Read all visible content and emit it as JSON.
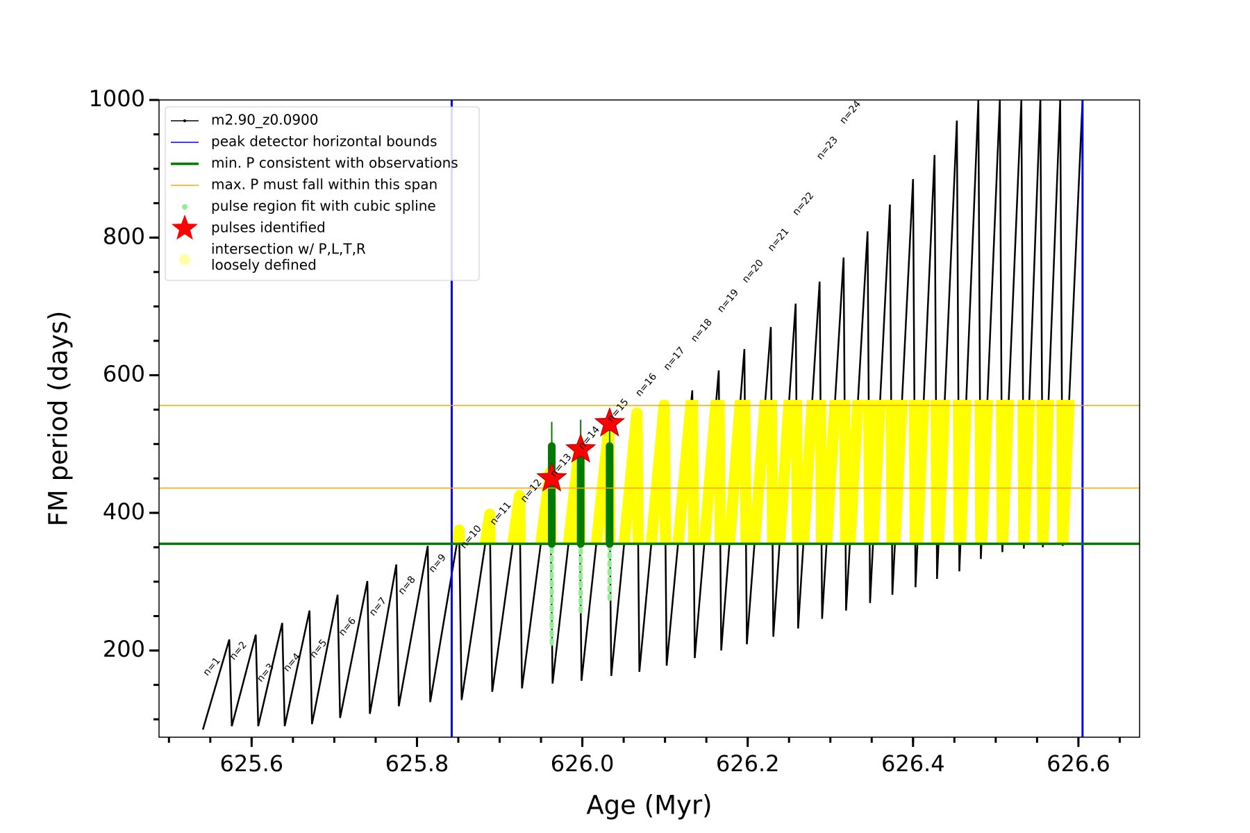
{
  "chart_data": {
    "type": "line",
    "xlabel": "Age (Myr)",
    "ylabel": "FM period (days)",
    "xlim": [
      625.488,
      626.674
    ],
    "ylim": [
      74,
      1000
    ],
    "xticks": [
      625.6,
      625.8,
      {
        "value": 626,
        "label": "626.0"
      },
      626.2,
      626.4,
      626.6
    ],
    "xminor_ticks": [
      625.5,
      625.55,
      625.6,
      625.65,
      625.7,
      625.75,
      625.8,
      625.85,
      625.9,
      625.95,
      626,
      626.05,
      626.1,
      626.15,
      626.2,
      626.25,
      626.3,
      626.35,
      626.4,
      626.45,
      626.5,
      626.55,
      626.6,
      626.65
    ],
    "yticks": [
      200,
      400,
      600,
      800,
      1000
    ],
    "yminor_ticks": [
      100,
      150,
      200,
      250,
      300,
      350,
      400,
      450,
      500,
      550,
      600,
      650,
      700,
      750,
      800,
      850,
      900,
      950,
      1000
    ],
    "series": [
      {
        "kind": "line",
        "name": "m2.90_z0.0900",
        "color": "#000000",
        "x": [
          625.541,
          625.573,
          625.576,
          625.605,
          625.608,
          625.637,
          625.64,
          625.67,
          625.673,
          625.704,
          625.707,
          625.74,
          625.743,
          625.775,
          625.778,
          625.813,
          625.816,
          625.851,
          625.854,
          625.888,
          625.891,
          625.924,
          625.927,
          625.961,
          625.964,
          625.996,
          625.999,
          626.032,
          626.035,
          626.066,
          626.069,
          626.099,
          626.102,
          626.133,
          626.136,
          626.165,
          626.168,
          626.196,
          626.199,
          626.228,
          626.231,
          626.258,
          626.261,
          626.287,
          626.29,
          626.316,
          626.319,
          626.345,
          626.348,
          626.372,
          626.375,
          626.4,
          626.403,
          626.426,
          626.429,
          626.453,
          626.456,
          626.479,
          626.482,
          626.505,
          626.508,
          626.531,
          626.534,
          626.554,
          626.557,
          626.578,
          626.581,
          626.605
        ],
        "values": [
          85,
          216,
          90,
          223,
          90,
          240,
          90,
          258,
          93,
          281,
          102,
          301,
          108,
          325,
          119,
          352,
          125,
          375,
          128,
          398,
          140,
          425,
          145,
          459,
          152,
          490,
          156,
          523,
          163,
          545,
          169,
          557,
          178,
          578,
          189,
          607,
          200,
          638,
          209,
          670,
          220,
          704,
          232,
          736,
          246,
          771,
          258,
          809,
          269,
          848,
          281,
          885,
          292,
          920,
          304,
          970,
          315,
          1000,
          333,
          1000,
          343,
          1000,
          348,
          1000,
          350,
          1000,
          352,
          1000
        ]
      },
      {
        "kind": "vline",
        "name": "peak detector horizontal bounds",
        "color": "#0000ee",
        "values": [
          625.842,
          626.605
        ]
      },
      {
        "kind": "hline",
        "name": "min. P consistent with observations",
        "color": "#007a00",
        "values": [
          355
        ]
      },
      {
        "kind": "hline",
        "name": "max. P must fall within this span",
        "color": "#ffa500",
        "values": [
          436,
          556
        ]
      },
      {
        "kind": "fit",
        "name": "pulse region fit with cubic spline",
        "color": "#90ee90",
        "x": [
          625.963,
          625.998,
          626.033
        ],
        "values": [
          497,
          500,
          497
        ],
        "lows": [
          210,
          257,
          275
        ]
      },
      {
        "kind": "star",
        "name": "pulses identified",
        "color": "#ff0000",
        "x": [
          625.963,
          625.998,
          626.033
        ],
        "values": [
          450,
          492,
          530
        ]
      },
      {
        "kind": "band",
        "name": [
          "intersection w/ P,L,T,R",
          "loosely defined"
        ],
        "color": "#ffff00"
      }
    ],
    "annotations": [
      {
        "text": "n=1",
        "x": 625.544,
        "y": 165
      },
      {
        "text": "n=2",
        "x": 625.576,
        "y": 188
      },
      {
        "text": "n=3",
        "x": 625.609,
        "y": 156
      },
      {
        "text": "n=4",
        "x": 625.641,
        "y": 171
      },
      {
        "text": "n=5",
        "x": 625.673,
        "y": 191
      },
      {
        "text": "n=6",
        "x": 625.708,
        "y": 223
      },
      {
        "text": "n=7",
        "x": 625.745,
        "y": 252
      },
      {
        "text": "n=8",
        "x": 625.78,
        "y": 283
      },
      {
        "text": "n=9",
        "x": 625.817,
        "y": 315
      },
      {
        "text": "n=10",
        "x": 625.855,
        "y": 350
      },
      {
        "text": "n=11",
        "x": 625.891,
        "y": 384
      },
      {
        "text": "n=12",
        "x": 625.928,
        "y": 417
      },
      {
        "text": "n=13",
        "x": 625.964,
        "y": 454
      },
      {
        "text": "n=14",
        "x": 625.998,
        "y": 494
      },
      {
        "text": "n=15",
        "x": 626.033,
        "y": 534
      },
      {
        "text": "n=16",
        "x": 626.067,
        "y": 571
      },
      {
        "text": "n=17",
        "x": 626.101,
        "y": 609
      },
      {
        "text": "n=18",
        "x": 626.134,
        "y": 650
      },
      {
        "text": "n=19",
        "x": 626.166,
        "y": 693
      },
      {
        "text": "n=20",
        "x": 626.196,
        "y": 736
      },
      {
        "text": "n=21",
        "x": 626.227,
        "y": 782
      },
      {
        "text": "n=22",
        "x": 626.257,
        "y": 834
      },
      {
        "text": "n=23",
        "x": 626.286,
        "y": 915
      },
      {
        "text": "n=24",
        "x": 626.314,
        "y": 967
      }
    ]
  }
}
